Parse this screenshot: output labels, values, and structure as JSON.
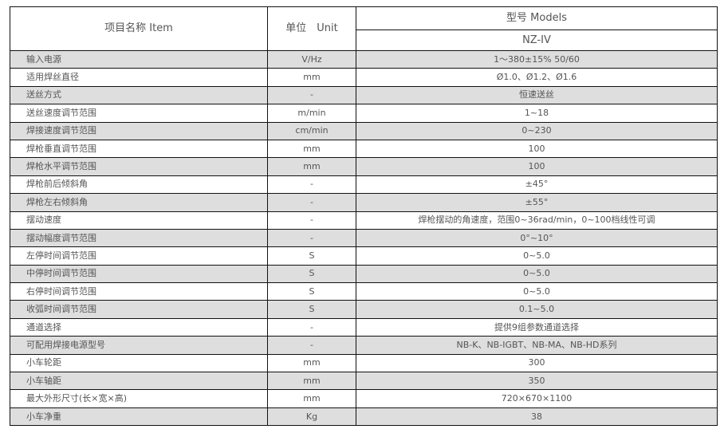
{
  "header": {
    "item": "项目名称 Item",
    "unit": "单位　Unit",
    "models": "型号 Models",
    "model": "NZ-IV"
  },
  "colors": {
    "stripe": "#dedede",
    "border": "#111111",
    "text": "#555555"
  },
  "rows": [
    {
      "name": "输入电源",
      "unit": "V/Hz",
      "value": "1～380±15%  50/60"
    },
    {
      "name": "适用焊丝直径",
      "unit": "mm",
      "value": "Ø1.0、Ø1.2、Ø1.6"
    },
    {
      "name": "送丝方式",
      "unit": "-",
      "value": "恒速送丝"
    },
    {
      "name": "送丝速度调节范围",
      "unit": "m/min",
      "value": "1~18"
    },
    {
      "name": "焊接速度调节范围",
      "unit": "cm/min",
      "value": "0~230"
    },
    {
      "name": "焊枪垂直调节范围",
      "unit": "mm",
      "value": "100"
    },
    {
      "name": "焊枪水平调节范围",
      "unit": "mm",
      "value": "100"
    },
    {
      "name": "焊枪前后倾斜角",
      "unit": "-",
      "value": "±45°"
    },
    {
      "name": "焊枪左右倾斜角",
      "unit": "-",
      "value": "±55°"
    },
    {
      "name": "摆动速度",
      "unit": "-",
      "value": "焊枪摆动的角速度，范围0~36rad/min，0~100档线性可调"
    },
    {
      "name": "摆动幅度调节范围",
      "unit": "-",
      "value": "0°~10°"
    },
    {
      "name": "左停时间调节范围",
      "unit": "S",
      "value": "0~5.0"
    },
    {
      "name": "中停时间调节范围",
      "unit": "S",
      "value": "0~5.0"
    },
    {
      "name": "右停时间调节范围",
      "unit": "S",
      "value": "0~5.0"
    },
    {
      "name": "收弧时间调节范围",
      "unit": "S",
      "value": "0.1~5.0"
    },
    {
      "name": "通道选择",
      "unit": "-",
      "value": "提供9组参数通道选择"
    },
    {
      "name": "可配用焊接电源型号",
      "unit": "-",
      "value": "NB-K、NB-IGBT、NB-MA、NB-HD系列"
    },
    {
      "name": "小车轮距",
      "unit": "mm",
      "value": "300"
    },
    {
      "name": "小车轴距",
      "unit": "mm",
      "value": "350"
    },
    {
      "name": "最大外形尺寸(长×宽×高)",
      "unit": "mm",
      "value": "720×670×1100"
    },
    {
      "name": "小车净重",
      "unit": "Kg",
      "value": "38"
    }
  ]
}
